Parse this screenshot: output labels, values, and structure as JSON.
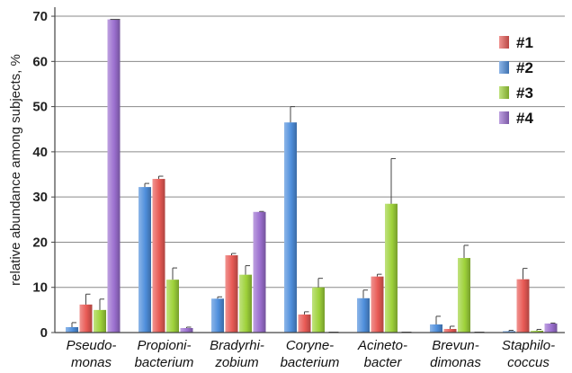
{
  "chart_data": {
    "type": "bar",
    "title": "",
    "xlabel": "",
    "ylabel": "relative abundance among subjects,  %",
    "ylim": [
      0,
      72
    ],
    "yticks": [
      0,
      10,
      20,
      30,
      40,
      50,
      60,
      70
    ],
    "grid": true,
    "legend_position": "top-right",
    "categories": [
      [
        "Pseudo-",
        "monas"
      ],
      [
        "Propioni-",
        "bacterium"
      ],
      [
        "Bradyrhi-",
        "zobium"
      ],
      [
        "Coryne-",
        "bacterium"
      ],
      [
        "Acineto-",
        "bacter"
      ],
      [
        "Brevun-",
        "dimonas"
      ],
      [
        "Staphilo-",
        "coccus"
      ]
    ],
    "series": [
      {
        "name": "#2",
        "color": "#4f8fdc",
        "values": [
          1.2,
          32.2,
          7.5,
          46.5,
          7.6,
          1.8,
          0.3
        ],
        "errors": [
          1.0,
          0.8,
          0.4,
          3.5,
          1.8,
          1.8,
          0.2
        ]
      },
      {
        "name": "#1",
        "color": "#e85a55",
        "values": [
          6.2,
          34.0,
          17.1,
          4.0,
          12.4,
          0.8,
          11.8
        ],
        "errors": [
          2.3,
          0.6,
          0.4,
          0.6,
          0.5,
          0.6,
          2.4
        ]
      },
      {
        "name": "#3",
        "color": "#9ed23a",
        "values": [
          5.0,
          11.7,
          12.8,
          10.0,
          28.5,
          16.5,
          0.4
        ],
        "errors": [
          2.4,
          2.6,
          2.0,
          2.0,
          10.0,
          2.8,
          0.3
        ]
      },
      {
        "name": "#4",
        "color": "#9b6fcf",
        "values": [
          69.3,
          1.0,
          26.7,
          0.1,
          0.1,
          0.1,
          2.0
        ],
        "errors": [
          0.0,
          0.2,
          0.1,
          0.0,
          0.0,
          0.0,
          0.1
        ]
      }
    ],
    "legend": [
      {
        "label": "#1",
        "color": "#e85a55"
      },
      {
        "label": "#2",
        "color": "#4f8fdc"
      },
      {
        "label": "#3",
        "color": "#9ed23a"
      },
      {
        "label": "#4",
        "color": "#9b6fcf"
      }
    ]
  }
}
